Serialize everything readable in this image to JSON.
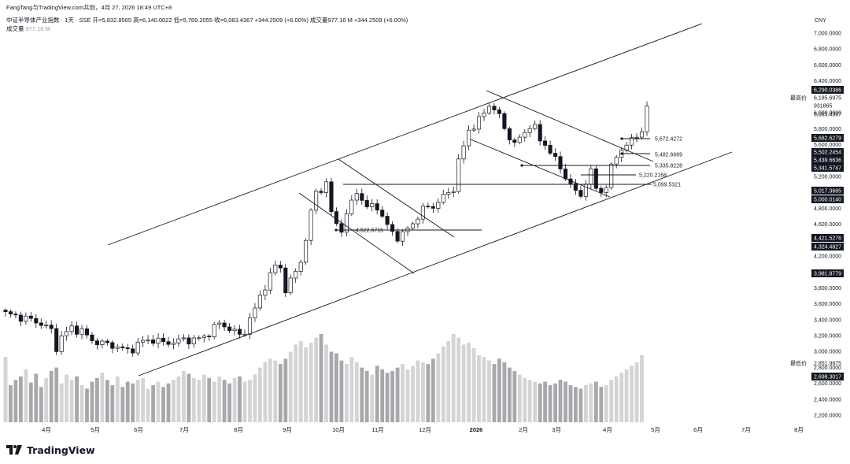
{
  "header": {
    "author_line": "FangTang与TradingView.com共创，4月 27, 2026 18:49 UTC+8",
    "symbol_line": "中证半导体产业指数 · 1天 · SSE  开=5,832.8565  高=6,140.0022  低=5,789.2055  收=6,083.4367  +344.2509 (+6.00%)  成交量977.16 M  +344.2509 (+6.00%)",
    "volume_label": "成交量",
    "volume_value": "977.16 M"
  },
  "brand": {
    "name": "TradingView",
    "icon": "tradingview-logo-icon"
  },
  "chart_data": {
    "type": "candlestick",
    "currency": "CNY",
    "y_axis_ticks": [
      "7,000.0000",
      "6,800.0000",
      "6,600.0000",
      "6,400.0000",
      "6,000.0000",
      "5,800.0000",
      "5,600.0000",
      "5,200.0000",
      "4,800.0000",
      "4,600.0000",
      "4,200.0000",
      "3,800.0000",
      "3,600.0000",
      "3,400.0000",
      "3,200.0000",
      "3,000.0000",
      "2,800.0000",
      "2,600.0000",
      "2,400.0000",
      "2,200.0000"
    ],
    "x_axis_ticks": [
      "4月",
      "5月",
      "6月",
      "7月",
      "8月",
      "9月",
      "10月",
      "11月",
      "12月",
      "2026",
      "2月",
      "3月",
      "4月",
      "5月",
      "6月",
      "7月",
      "8月"
    ],
    "price_labels": [
      {
        "text": "6,290.0386",
        "dark": true
      },
      {
        "text": "6,185.6975",
        "dark": false,
        "prefix": "最高价"
      },
      {
        "text": "931865",
        "dark": false
      },
      {
        "text": "6,083.4367",
        "dark": false
      },
      {
        "text": "5,682.6279",
        "dark": true
      },
      {
        "text": "5,502.2454",
        "dark": true
      },
      {
        "text": "5,439.6636",
        "dark": true
      },
      {
        "text": "5,341.5747",
        "dark": true
      },
      {
        "text": "5,017.3685",
        "dark": true
      },
      {
        "text": "5,000.0140",
        "dark": true
      },
      {
        "text": "4,421.5276",
        "dark": true
      },
      {
        "text": "4,324.4827",
        "dark": true
      },
      {
        "text": "3,981.8779",
        "dark": true
      },
      {
        "text": "2,851.9875",
        "dark": false,
        "prefix": "最低价"
      },
      {
        "text": "2,698.3017",
        "dark": true
      }
    ],
    "level_labels": [
      "5,672.4272",
      "5,482.6669",
      "5,335.8228",
      "5,220.2168",
      "5,099.5321",
      "4,522.5715"
    ],
    "price_path": [
      [
        0,
        3475
      ],
      [
        3,
        3430
      ],
      [
        6,
        3380
      ],
      [
        8,
        3310
      ],
      [
        9,
        3260
      ],
      [
        10,
        3050
      ],
      [
        11,
        3180
      ],
      [
        13,
        3300
      ],
      [
        15,
        3250
      ],
      [
        17,
        3140
      ],
      [
        19,
        3100
      ],
      [
        21,
        3080
      ],
      [
        23,
        3030
      ],
      [
        24,
        3010
      ],
      [
        25,
        3040
      ],
      [
        27,
        3130
      ],
      [
        29,
        3150
      ],
      [
        31,
        3110
      ],
      [
        33,
        3120
      ],
      [
        35,
        3150
      ],
      [
        37,
        3145
      ],
      [
        39,
        3180
      ],
      [
        41,
        3300
      ],
      [
        42,
        3350
      ],
      [
        44,
        3290
      ],
      [
        46,
        3200
      ],
      [
        47,
        3260
      ],
      [
        48,
        3410
      ],
      [
        49,
        3530
      ],
      [
        50,
        3690
      ],
      [
        51,
        3830
      ],
      [
        52,
        3950
      ],
      [
        53,
        4080
      ],
      [
        54,
        4050
      ],
      [
        55,
        3780
      ],
      [
        56,
        3880
      ],
      [
        57,
        4000
      ],
      [
        58,
        4150
      ],
      [
        59,
        4400
      ],
      [
        60,
        4750
      ],
      [
        61,
        5000
      ],
      [
        62,
        5050
      ],
      [
        63,
        5100
      ],
      [
        64,
        4750
      ],
      [
        65,
        4600
      ],
      [
        66,
        4550
      ],
      [
        67,
        4680
      ],
      [
        68,
        4900
      ],
      [
        69,
        5000
      ],
      [
        70,
        4920
      ],
      [
        71,
        4780
      ],
      [
        72,
        4850
      ],
      [
        73,
        4820
      ],
      [
        74,
        4680
      ],
      [
        75,
        4580
      ],
      [
        76,
        4500
      ],
      [
        77,
        4440
      ],
      [
        78,
        4460
      ],
      [
        79,
        4550
      ],
      [
        80,
        4610
      ],
      [
        81,
        4700
      ],
      [
        82,
        4780
      ],
      [
        83,
        4820
      ],
      [
        84,
        4830
      ],
      [
        85,
        4870
      ],
      [
        86,
        4950
      ],
      [
        87,
        4990
      ],
      [
        88,
        5060
      ],
      [
        89,
        5380
      ],
      [
        90,
        5580
      ],
      [
        91,
        5780
      ],
      [
        92,
        5840
      ],
      [
        93,
        5900
      ],
      [
        94,
        6000
      ],
      [
        95,
        6100
      ],
      [
        96,
        6050
      ],
      [
        97,
        5950
      ],
      [
        98,
        5800
      ],
      [
        99,
        5700
      ],
      [
        100,
        5600
      ],
      [
        101,
        5680
      ],
      [
        102,
        5750
      ],
      [
        103,
        5850
      ],
      [
        104,
        5800
      ],
      [
        105,
        5650
      ],
      [
        106,
        5600
      ],
      [
        107,
        5520
      ],
      [
        108,
        5400
      ],
      [
        109,
        5300
      ],
      [
        110,
        5200
      ],
      [
        111,
        5100
      ],
      [
        112,
        5000
      ],
      [
        113,
        4950
      ],
      [
        114,
        5150
      ],
      [
        115,
        5250
      ],
      [
        116,
        5050
      ],
      [
        117,
        5000
      ],
      [
        118,
        5100
      ],
      [
        119,
        5300
      ],
      [
        120,
        5450
      ],
      [
        121,
        5550
      ],
      [
        122,
        5600
      ],
      [
        123,
        5650
      ],
      [
        124,
        5700
      ],
      [
        125,
        5800
      ],
      [
        126,
        6083
      ]
    ],
    "volume_bars": [
      74,
      42,
      48,
      52,
      60,
      45,
      55,
      40,
      50,
      58,
      62,
      44,
      54,
      48,
      52,
      42,
      38,
      46,
      50,
      56,
      48,
      42,
      52,
      40,
      46,
      44,
      48,
      50,
      38,
      42,
      46,
      40,
      44,
      48,
      52,
      58,
      55,
      50,
      48,
      54,
      50,
      46,
      52,
      48,
      44,
      50,
      52,
      46,
      48,
      54,
      62,
      68,
      72,
      70,
      66,
      72,
      80,
      88,
      92,
      85,
      90,
      96,
      100,
      88,
      80,
      78,
      70,
      66,
      74,
      68,
      62,
      58,
      54,
      64,
      60,
      56,
      58,
      62,
      66,
      60,
      64,
      70,
      68,
      66,
      72,
      78,
      86,
      92,
      100,
      96,
      88,
      90,
      84,
      76,
      74,
      70,
      66,
      72,
      68,
      62,
      58,
      54,
      50,
      48,
      46,
      44,
      46,
      42,
      44,
      48,
      46,
      42,
      40,
      38,
      42,
      44,
      46,
      40,
      42,
      48,
      52,
      56,
      60,
      64,
      68,
      76
    ]
  }
}
